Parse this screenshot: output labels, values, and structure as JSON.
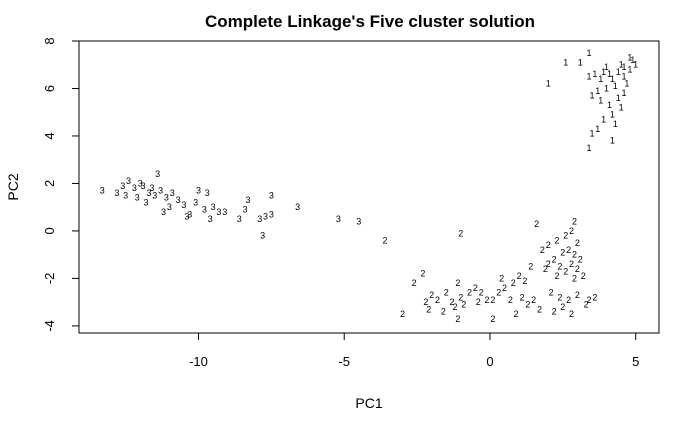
{
  "chart_data": {
    "type": "scatter",
    "title": "Complete Linkage's Five cluster solution",
    "xlabel": "PC1",
    "ylabel": "PC2",
    "xlim": [
      -14.1,
      5.8
    ],
    "ylim": [
      -4.3,
      8.0
    ],
    "xticks": [
      -10,
      -5,
      0,
      5
    ],
    "yticks": [
      -4,
      -2,
      0,
      2,
      4,
      6,
      8
    ],
    "grid": false,
    "legend": "none",
    "marker": "cluster number",
    "series": [
      {
        "label": "1",
        "points": [
          [
            3.4,
            7.5
          ],
          [
            2.6,
            7.1
          ],
          [
            3.1,
            7.1
          ],
          [
            2.0,
            6.2
          ],
          [
            3.4,
            6.5
          ],
          [
            3.6,
            6.6
          ],
          [
            3.8,
            6.4
          ],
          [
            3.9,
            6.7
          ],
          [
            4.0,
            6.9
          ],
          [
            4.2,
            6.4
          ],
          [
            4.4,
            6.7
          ],
          [
            4.5,
            7.0
          ],
          [
            4.6,
            6.5
          ],
          [
            4.8,
            6.8
          ],
          [
            4.9,
            7.2
          ],
          [
            5.0,
            7.0
          ],
          [
            4.7,
            6.2
          ],
          [
            4.3,
            6.1
          ],
          [
            4.0,
            6.0
          ],
          [
            3.7,
            5.9
          ],
          [
            3.5,
            5.7
          ],
          [
            3.8,
            5.5
          ],
          [
            4.1,
            5.3
          ],
          [
            4.4,
            5.6
          ],
          [
            4.6,
            5.8
          ],
          [
            4.5,
            5.2
          ],
          [
            4.2,
            4.9
          ],
          [
            3.9,
            4.7
          ],
          [
            4.3,
            4.5
          ],
          [
            3.7,
            4.3
          ],
          [
            3.5,
            4.1
          ],
          [
            3.4,
            3.5
          ],
          [
            4.2,
            3.8
          ],
          [
            4.6,
            6.9
          ],
          [
            4.8,
            7.3
          ],
          [
            4.1,
            6.6
          ]
        ]
      },
      {
        "label": "2",
        "points": [
          [
            -1.0,
            -0.1
          ],
          [
            1.6,
            0.3
          ],
          [
            2.9,
            0.4
          ],
          [
            -3.6,
            -0.4
          ],
          [
            -2.3,
            -1.8
          ],
          [
            -2.6,
            -2.2
          ],
          [
            -3.0,
            -3.5
          ],
          [
            -2.0,
            -2.7
          ],
          [
            -2.2,
            -3.0
          ],
          [
            -1.8,
            -2.9
          ],
          [
            -2.1,
            -3.3
          ],
          [
            -1.6,
            -3.4
          ],
          [
            -1.3,
            -3.0
          ],
          [
            -1.5,
            -2.6
          ],
          [
            -1.2,
            -3.2
          ],
          [
            -1.1,
            -2.2
          ],
          [
            -1.0,
            -2.8
          ],
          [
            -0.9,
            -3.1
          ],
          [
            -0.7,
            -2.6
          ],
          [
            -0.5,
            -2.4
          ],
          [
            -0.3,
            -2.6
          ],
          [
            -0.4,
            -3.0
          ],
          [
            -1.1,
            -3.7
          ],
          [
            -0.1,
            -2.9
          ],
          [
            0.1,
            -2.9
          ],
          [
            0.3,
            -2.6
          ],
          [
            0.5,
            -2.4
          ],
          [
            0.4,
            -2.0
          ],
          [
            0.8,
            -2.2
          ],
          [
            1.0,
            -1.9
          ],
          [
            1.2,
            -2.1
          ],
          [
            0.7,
            -2.9
          ],
          [
            1.1,
            -2.8
          ],
          [
            0.9,
            -3.5
          ],
          [
            1.3,
            -3.1
          ],
          [
            1.5,
            -2.9
          ],
          [
            1.7,
            -3.3
          ],
          [
            0.1,
            -3.7
          ],
          [
            1.4,
            -1.5
          ],
          [
            1.9,
            -1.6
          ],
          [
            2.2,
            -1.2
          ],
          [
            2.5,
            -0.9
          ],
          [
            2.7,
            -0.8
          ],
          [
            2.9,
            -1.0
          ],
          [
            3.1,
            -1.2
          ],
          [
            2.4,
            -1.5
          ],
          [
            2.6,
            -1.7
          ],
          [
            2.8,
            -1.4
          ],
          [
            3.0,
            -1.6
          ],
          [
            2.3,
            -1.9
          ],
          [
            2.9,
            -2.0
          ],
          [
            3.2,
            -1.9
          ],
          [
            2.1,
            -2.6
          ],
          [
            2.4,
            -2.8
          ],
          [
            2.7,
            -2.9
          ],
          [
            3.0,
            -2.7
          ],
          [
            3.3,
            -3.1
          ],
          [
            2.5,
            -3.2
          ],
          [
            2.2,
            -3.4
          ],
          [
            2.8,
            -3.5
          ],
          [
            3.6,
            -2.8
          ],
          [
            3.4,
            -2.9
          ],
          [
            2.0,
            -1.4
          ],
          [
            2.3,
            -0.4
          ],
          [
            2.6,
            -0.2
          ],
          [
            2.8,
            0.0
          ],
          [
            3.0,
            -0.5
          ],
          [
            1.8,
            -0.8
          ],
          [
            2.0,
            -0.6
          ]
        ]
      },
      {
        "label": "3",
        "points": [
          [
            -13.3,
            1.7
          ],
          [
            -12.8,
            1.6
          ],
          [
            -12.6,
            1.9
          ],
          [
            -12.4,
            2.1
          ],
          [
            -12.5,
            1.5
          ],
          [
            -12.2,
            1.8
          ],
          [
            -12.1,
            1.4
          ],
          [
            -11.9,
            1.9
          ],
          [
            -11.7,
            1.6
          ],
          [
            -11.8,
            1.2
          ],
          [
            -11.5,
            1.5
          ],
          [
            -11.6,
            1.8
          ],
          [
            -11.3,
            1.7
          ],
          [
            -11.1,
            1.4
          ],
          [
            -11.0,
            1.0
          ],
          [
            -10.9,
            1.6
          ],
          [
            -10.7,
            1.3
          ],
          [
            -10.5,
            1.1
          ],
          [
            -10.3,
            0.7
          ],
          [
            -10.1,
            1.2
          ],
          [
            -10.0,
            1.7
          ],
          [
            -9.8,
            0.9
          ],
          [
            -9.6,
            0.5
          ],
          [
            -9.5,
            1.0
          ],
          [
            -9.3,
            0.8
          ],
          [
            -9.1,
            0.8
          ],
          [
            -8.6,
            0.5
          ],
          [
            -8.4,
            0.9
          ],
          [
            -8.3,
            1.3
          ],
          [
            -7.9,
            0.5
          ],
          [
            -7.7,
            0.6
          ],
          [
            -7.5,
            0.7
          ],
          [
            -7.5,
            1.5
          ],
          [
            -6.6,
            1.0
          ],
          [
            -5.2,
            0.5
          ],
          [
            -4.5,
            0.4
          ],
          [
            -7.8,
            -0.2
          ],
          [
            -11.4,
            2.4
          ],
          [
            -12.0,
            2.0
          ],
          [
            -11.2,
            0.8
          ],
          [
            -10.4,
            0.6
          ],
          [
            -9.7,
            1.6
          ]
        ]
      }
    ]
  }
}
